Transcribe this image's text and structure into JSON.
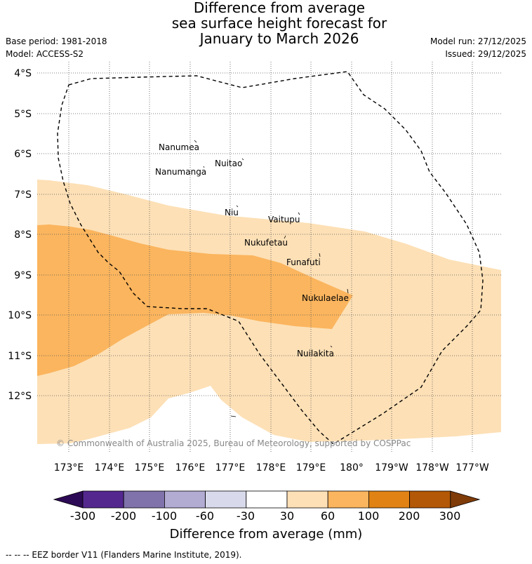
{
  "title": {
    "line1": "Difference from average",
    "line2": "sea surface height forecast for",
    "line3": "January to March 2026"
  },
  "meta_left": {
    "base_period": "Base period: 1981-2018",
    "model": "Model: ACCESS-S2"
  },
  "meta_right": {
    "model_run": "Model run: 27/12/2025",
    "issued": "Issued: 29/12/2025"
  },
  "map": {
    "lat_labels": [
      "4°S",
      "5°S",
      "6°S",
      "7°S",
      "8°S",
      "9°S",
      "10°S",
      "11°S",
      "12°S"
    ],
    "lon_labels": [
      "173°E",
      "174°E",
      "175°E",
      "176°E",
      "177°E",
      "178°E",
      "179°E",
      "180°",
      "179°W",
      "178°W",
      "177°W"
    ],
    "places": [
      "Nanumea",
      "Nuitao",
      "Nanumanga",
      "Niu",
      "Vaitupu",
      "Nukufetau",
      "Funafuti",
      "Nukulaelae",
      "Nuilakita"
    ],
    "credit": "© Commonwealth of Australia 2025, Bureau of Meteorology, supported by COSPPac",
    "category_colors": {
      "30 to 60": "#fde0b6",
      "60 to 100": "#fbb55e"
    },
    "border_style": "dashed"
  },
  "colorbar": {
    "ticks": [
      "-300",
      "-200",
      "-100",
      "-60",
      "-30",
      "30",
      "60",
      "100",
      "200",
      "300"
    ],
    "colors": [
      "#2d0a55",
      "#54278f",
      "#8073ac",
      "#b2abd2",
      "#d8daeb",
      "#ffffff",
      "#fde0b6",
      "#fbb55e",
      "#e08214",
      "#b35806",
      "#7f3b08"
    ],
    "title": "Difference from average (mm)"
  },
  "footnote": "-- -- -- EEZ border V11 (Flanders Marine Institute, 2019)."
}
